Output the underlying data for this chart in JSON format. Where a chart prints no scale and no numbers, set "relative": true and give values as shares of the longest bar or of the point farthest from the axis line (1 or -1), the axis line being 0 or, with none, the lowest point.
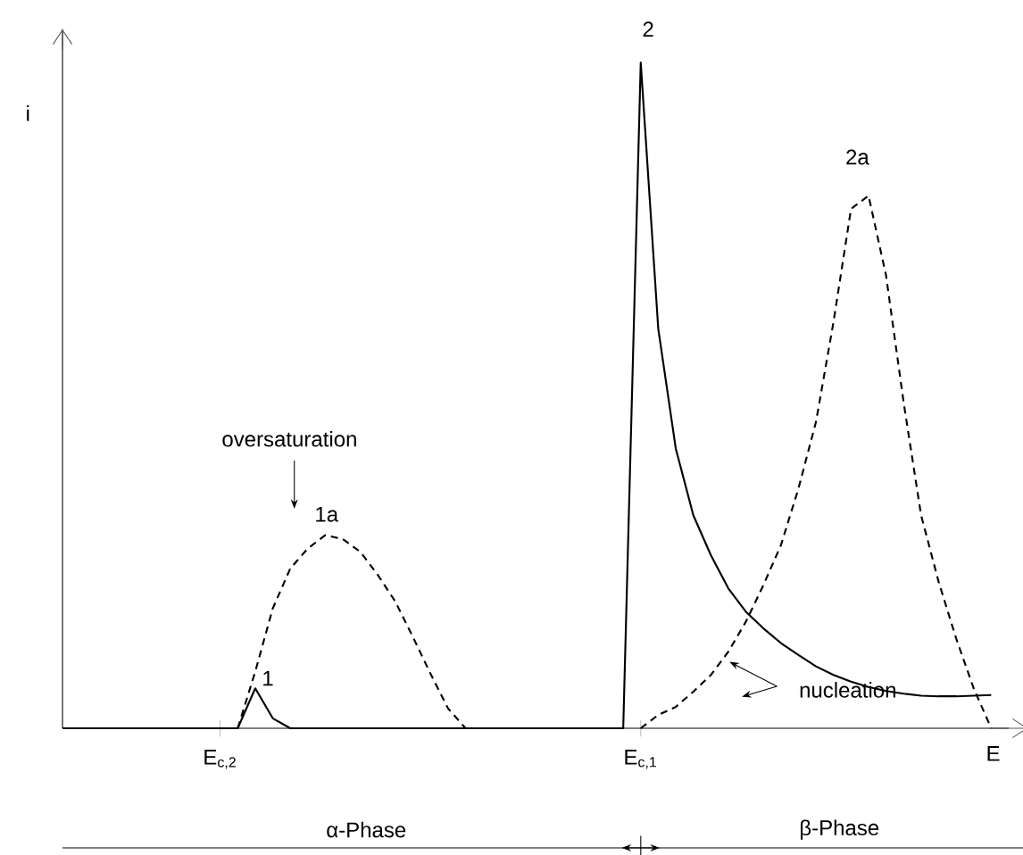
{
  "chart_data": {
    "type": "line",
    "relative": true,
    "xlabel": "E",
    "ylabel": "i",
    "marker": "none",
    "categories": [
      null,
      null,
      null,
      null,
      null,
      null,
      null,
      null,
      null,
      "E$_{c,2}$",
      null,
      null,
      null,
      null,
      null,
      null,
      null,
      null,
      null,
      null,
      null,
      null,
      null,
      null,
      null,
      null,
      null,
      null,
      null,
      null,
      null,
      null,
      null,
      "E$_{c,1}$",
      null,
      null,
      null,
      null,
      null,
      null,
      null,
      null,
      null,
      null,
      null,
      null,
      null,
      null,
      null,
      null,
      null,
      null,
      null,
      null,
      null
    ],
    "series": [
      {
        "color": "#000000",
        "line_style": "solid",
        "values": [
          0,
          0,
          0,
          0,
          0,
          0,
          0,
          0,
          0,
          0,
          0,
          0.06,
          0.015,
          0,
          0,
          0,
          0,
          0,
          0,
          0,
          0,
          0,
          0,
          0,
          0,
          0,
          0,
          0,
          0,
          0,
          0,
          0,
          0,
          1,
          0.6,
          0.42,
          0.32,
          0.26,
          0.21,
          0.175,
          0.15,
          0.128,
          0.11,
          0.093,
          0.08,
          0.07,
          0.062,
          0.056,
          0.052,
          0.049,
          0.048,
          0.048,
          0.049,
          0.05,
          null
        ]
      },
      {
        "color": "#000000",
        "line_style": "dashed",
        "values": [
          null,
          null,
          null,
          null,
          null,
          null,
          null,
          null,
          null,
          null,
          0,
          0.085,
          0.18,
          0.24,
          0.27,
          0.29,
          0.284,
          0.265,
          0.23,
          0.19,
          0.137,
          0.082,
          0.03,
          0,
          null,
          null,
          null,
          null,
          null,
          null,
          null,
          null,
          null,
          null,
          null,
          null,
          null,
          null,
          null,
          null,
          null,
          null,
          null,
          null,
          null,
          null,
          null,
          null,
          null,
          null,
          null,
          null,
          null,
          null,
          null
        ]
      },
      {
        "color": "#000000",
        "line_style": "dashed",
        "values": [
          null,
          null,
          null,
          null,
          null,
          null,
          null,
          null,
          null,
          null,
          null,
          null,
          null,
          null,
          null,
          null,
          null,
          null,
          null,
          null,
          null,
          null,
          null,
          null,
          null,
          null,
          null,
          null,
          null,
          null,
          null,
          null,
          null,
          0,
          0.02,
          0.032,
          0.055,
          0.08,
          0.115,
          0.16,
          0.215,
          0.275,
          0.36,
          0.46,
          0.61,
          0.78,
          0.8,
          0.68,
          0.49,
          0.32,
          0.22,
          0.135,
          0.06,
          0,
          null
        ]
      }
    ],
    "annotations": [
      "1",
      "1a",
      "oversaturation",
      "2",
      "2a",
      "nucleation",
      "α-Phase",
      "β-Phase"
    ]
  }
}
